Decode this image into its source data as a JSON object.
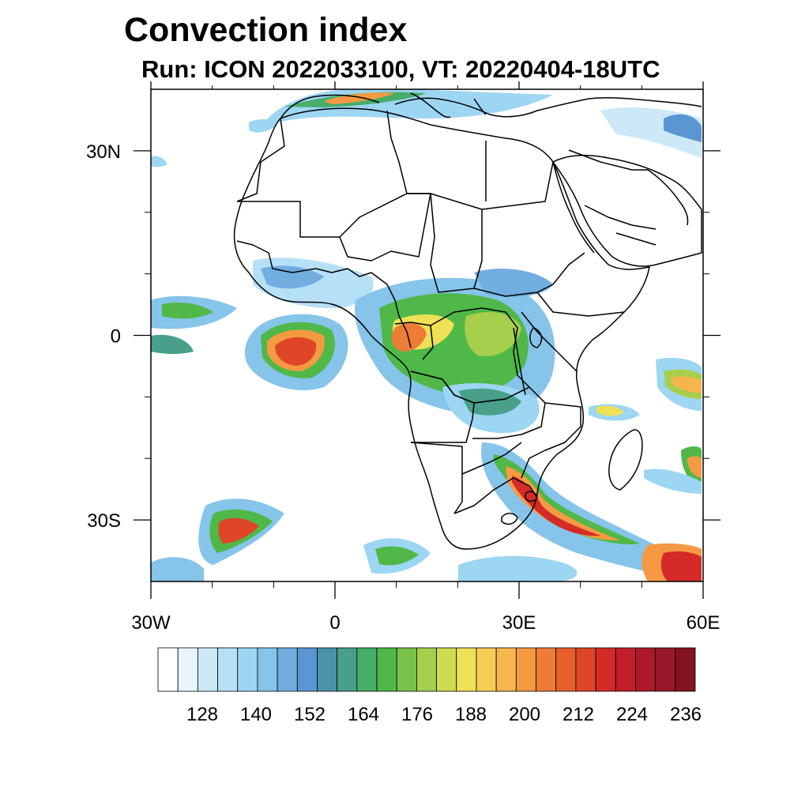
{
  "title": "Convection index",
  "subtitle": "Run: ICON 2022033100,  VT: 20220404-18UTC",
  "map": {
    "lon_range": [
      -30,
      60
    ],
    "lat_range": [
      -40,
      40
    ],
    "lon_ticks": [
      {
        "lon": -30,
        "label": "30W"
      },
      {
        "lon": 0,
        "label": "0"
      },
      {
        "lon": 30,
        "label": "30E"
      },
      {
        "lon": 60,
        "label": "60E"
      }
    ],
    "lat_ticks": [
      {
        "lat": 30,
        "label": "30N"
      },
      {
        "lat": 0,
        "label": "0"
      },
      {
        "lat": -30,
        "label": "30S"
      }
    ],
    "minor_lon_ticks": [
      -20,
      -10,
      10,
      20,
      40,
      50
    ],
    "minor_lat_ticks": [
      20,
      10,
      -10,
      -20
    ]
  },
  "colorbar": {
    "colors": [
      "#ffffff",
      "#e8f4fc",
      "#cde8f7",
      "#b6e0f6",
      "#9dd6f3",
      "#86c4ea",
      "#71addf",
      "#5a96d1",
      "#4a92a8",
      "#48a08a",
      "#46ad6a",
      "#4fb848",
      "#79c24a",
      "#a6cf4c",
      "#cfdc51",
      "#efe156",
      "#f7cd56",
      "#f6b64d",
      "#f59a43",
      "#ef7c36",
      "#e7602c",
      "#df4527",
      "#d42b29",
      "#c21e2b",
      "#ad182a",
      "#991627",
      "#84121f"
    ],
    "labels": [
      {
        "value": "128",
        "after_index": 3
      },
      {
        "value": "140",
        "after_index": 6
      },
      {
        "value": "152",
        "after_index": 9
      },
      {
        "value": "164",
        "after_index": 12
      },
      {
        "value": "176",
        "after_index": 15
      },
      {
        "value": "188",
        "after_index": 18
      },
      {
        "value": "200",
        "after_index": 21
      },
      {
        "value": "212",
        "after_index": 24
      },
      {
        "value": "224",
        "after_index": 27
      },
      {
        "value": "236",
        "after_index": 30
      }
    ]
  }
}
